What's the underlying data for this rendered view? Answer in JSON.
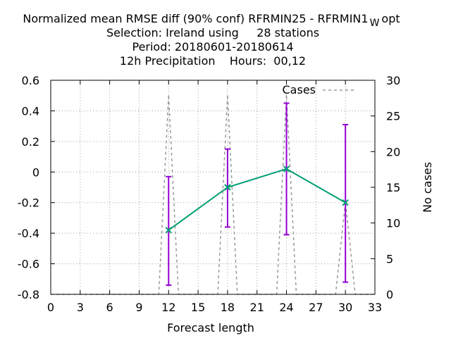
{
  "chart_data": {
    "type": "line",
    "title_lines": [
      "Normalized mean RMSE diff (90% conf) RFRMIN25 - RFRMIN1",
      "Selection: Ireland using     28 stations",
      "Period: 20180601-20180614",
      "12h Precipitation    Hours:  00,12"
    ],
    "title_subscript": "W",
    "title_suffix": "opt",
    "xlabel": "Forecast length",
    "ylabel": "",
    "y2label": "No cases",
    "xlim": [
      0,
      33
    ],
    "ylim": [
      -0.8,
      0.6
    ],
    "y2lim": [
      0,
      30
    ],
    "xticks": [
      0,
      3,
      6,
      9,
      12,
      15,
      18,
      21,
      24,
      27,
      30,
      33
    ],
    "yticks": [
      -0.8,
      -0.6,
      -0.4,
      -0.2,
      0,
      0.2,
      0.4,
      0.6
    ],
    "y2ticks": [
      0,
      5,
      10,
      15,
      20,
      25,
      30
    ],
    "grid": true,
    "legend_position": "top-right",
    "series": [
      {
        "name": "",
        "style": "line-with-errorbars",
        "color": "#009e73",
        "errorbar_color": "#9400d3",
        "axis": "left",
        "x": [
          12,
          18,
          24,
          30
        ],
        "y": [
          -0.38,
          -0.1,
          0.02,
          -0.2
        ],
        "low": [
          -0.74,
          -0.36,
          -0.41,
          -0.72
        ],
        "high": [
          -0.03,
          0.15,
          0.45,
          0.31
        ]
      },
      {
        "name": "Cases",
        "style": "dashed",
        "color": "#999999",
        "axis": "right",
        "x": [
          0,
          11,
          12,
          13,
          17,
          18,
          19,
          23,
          24,
          25,
          29,
          30,
          31,
          33
        ],
        "y": [
          0,
          0,
          28,
          0,
          0,
          28,
          0,
          0,
          28,
          0,
          0,
          13,
          0,
          0
        ]
      }
    ]
  }
}
